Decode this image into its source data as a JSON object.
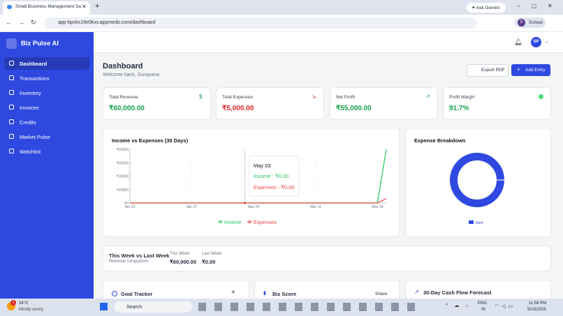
{
  "browser": {
    "tab_title": "Small Business Management Sa",
    "ask_gemini": "Ask Gemini",
    "url": "app-bpvks16e0kxv.appmedo.com/dashboard",
    "profile": "School",
    "profile_initial": "S"
  },
  "sidebar": {
    "brand": "Biz Pulse AI",
    "nav": [
      "Dashboard",
      "Transactions",
      "Inventory",
      "Invoices",
      "Credits",
      "Market Pulse",
      "Watchlist"
    ]
  },
  "header": {
    "avatar": "SP"
  },
  "page": {
    "title": "Dashboard",
    "subtitle": "Welcome back, Sunayana",
    "export": "Export PDF",
    "add": "Add Entry"
  },
  "stats": [
    {
      "label": "Total Revenue",
      "value": "₹60,000.00"
    },
    {
      "label": "Total Expenses",
      "value": "₹5,000.00"
    },
    {
      "label": "Net Profit",
      "value": "₹55,000.00"
    },
    {
      "label": "Profit Margin",
      "value": "91.7%"
    }
  ],
  "chart_data": [
    {
      "type": "line",
      "title": "Income vs Expenses (30 Days)",
      "categories": [
        "Apr 20",
        null,
        null,
        null,
        null,
        null,
        null,
        "Apr 27",
        null,
        null,
        null,
        null,
        null,
        null,
        "May 04",
        null,
        null,
        null,
        null,
        null,
        null,
        "May 11",
        null,
        null,
        null,
        null,
        null,
        null,
        "May 18",
        null
      ],
      "series": [
        {
          "name": "Income",
          "color": "#22c55e",
          "values": [
            0,
            0,
            0,
            0,
            0,
            0,
            0,
            0,
            0,
            0,
            0,
            0,
            0,
            0,
            0,
            0,
            0,
            0,
            0,
            0,
            0,
            0,
            0,
            0,
            0,
            0,
            0,
            0,
            0,
            60000
          ]
        },
        {
          "name": "Expenses",
          "color": "#ef4444",
          "values": [
            0,
            0,
            0,
            0,
            0,
            0,
            0,
            0,
            0,
            0,
            0,
            0,
            0,
            0,
            0,
            0,
            0,
            0,
            0,
            0,
            0,
            0,
            0,
            0,
            0,
            0,
            0,
            0,
            0,
            5000
          ]
        }
      ],
      "ylim": [
        0,
        60000
      ],
      "yticks": [
        {
          "value": 0,
          "label": "₹0"
        },
        {
          "value": 15000,
          "label": "₹15000"
        },
        {
          "value": 30000,
          "label": "₹30000"
        },
        {
          "value": 45000,
          "label": "₹45000"
        },
        {
          "value": 60000,
          "label": "₹60000"
        }
      ],
      "grid": true,
      "legend": "bottom",
      "tooltip": {
        "title": "May 03",
        "lines": [
          "Income : ₹0.00",
          "Expenses : ₹0.00"
        ]
      }
    },
    {
      "type": "pie",
      "title": "Expense Breakdown",
      "categories": [
        "Rent"
      ],
      "values": [
        100
      ],
      "colors": [
        "#2f49e0"
      ],
      "donut": true,
      "legend": "bottom"
    }
  ],
  "week": {
    "title": "This Week vs Last Week",
    "subtitle": "Revenue comparison",
    "this_label": "This Week",
    "this_value": "₹60,000.00",
    "last_label": "Last Week",
    "last_value": "₹0.00"
  },
  "cards": {
    "goal": "Goal Tracker",
    "score": "Biz Score",
    "share": "Share",
    "forecast": "30-Day Cash Flow Forecast"
  },
  "taskbar": {
    "temp": "34°C",
    "weather": "Mostly sunny",
    "badge": "1",
    "search": "Search",
    "lang": "ENG",
    "region": "IN",
    "time": "11:58 PM",
    "date": "5/19/2026"
  }
}
